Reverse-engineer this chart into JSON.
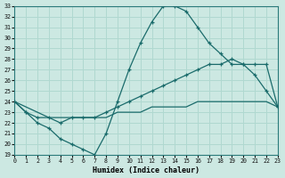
{
  "xlabel": "Humidex (Indice chaleur)",
  "bg_color": "#cce8e2",
  "grid_color": "#b0d8d0",
  "line_color": "#1a6b6b",
  "xlim": [
    0,
    23
  ],
  "ylim": [
    19,
    33
  ],
  "xtick_vals": [
    0,
    1,
    2,
    3,
    4,
    5,
    6,
    7,
    8,
    9,
    10,
    11,
    12,
    13,
    14,
    15,
    16,
    17,
    18,
    19,
    20,
    21,
    22,
    23
  ],
  "ytick_vals": [
    19,
    20,
    21,
    22,
    23,
    24,
    25,
    26,
    27,
    28,
    29,
    30,
    31,
    32,
    33
  ],
  "line1_x": [
    0,
    1,
    2,
    3,
    4,
    5,
    6,
    7,
    8,
    9,
    10,
    11,
    12,
    13,
    14,
    15,
    16,
    17,
    18,
    19,
    20,
    21,
    22,
    23
  ],
  "line1_y": [
    24.0,
    23.0,
    22.0,
    21.5,
    20.5,
    20.0,
    19.5,
    19.0,
    21.0,
    24.0,
    27.0,
    29.5,
    31.5,
    33.0,
    33.0,
    32.5,
    31.0,
    29.5,
    28.5,
    27.5,
    27.5,
    26.5,
    25.0,
    23.5
  ],
  "line2_x": [
    0,
    1,
    2,
    3,
    4,
    5,
    6,
    7,
    8,
    9,
    10,
    11,
    12,
    13,
    14,
    15,
    16,
    17,
    18,
    19,
    20,
    21,
    22,
    23
  ],
  "line2_y": [
    24.0,
    23.0,
    22.5,
    22.5,
    22.0,
    22.5,
    22.5,
    22.5,
    23.0,
    23.5,
    24.0,
    24.5,
    25.0,
    25.5,
    26.0,
    26.5,
    27.0,
    27.5,
    27.5,
    28.0,
    27.5,
    27.5,
    27.5,
    23.5
  ],
  "line3_x": [
    0,
    1,
    2,
    3,
    4,
    5,
    6,
    7,
    8,
    9,
    10,
    11,
    12,
    13,
    14,
    15,
    16,
    17,
    18,
    19,
    20,
    21,
    22,
    23
  ],
  "line3_y": [
    24.0,
    23.5,
    23.0,
    22.5,
    22.5,
    22.5,
    22.5,
    22.5,
    22.5,
    23.0,
    23.0,
    23.0,
    23.5,
    23.5,
    23.5,
    23.5,
    24.0,
    24.0,
    24.0,
    24.0,
    24.0,
    24.0,
    24.0,
    23.5
  ]
}
